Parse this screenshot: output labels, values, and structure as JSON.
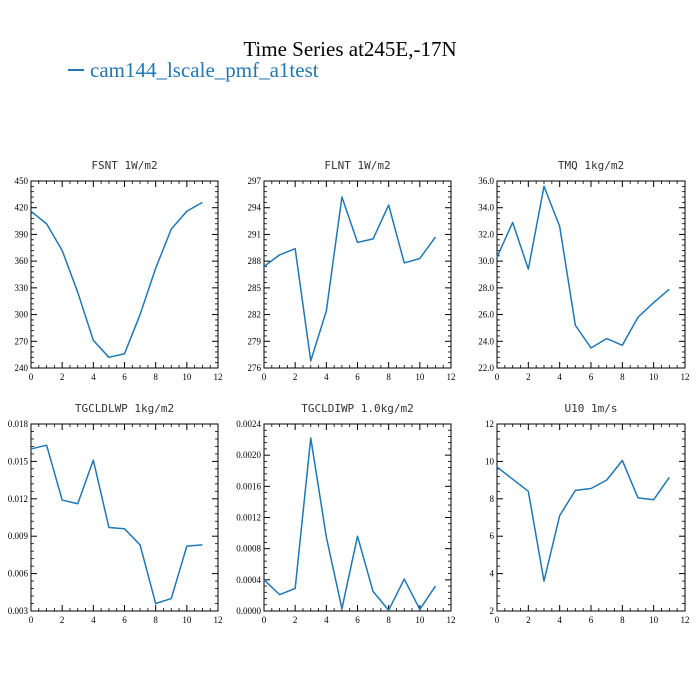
{
  "title": "Time Series at245E,-17N",
  "legend": {
    "label": "cam144_lscale_pmf_a1test",
    "color": "#1f77b4"
  },
  "chart_data": [
    {
      "type": "line",
      "title": "FSNT  1W/m2",
      "x": [
        0,
        1,
        2,
        3,
        4,
        5,
        6,
        7,
        8,
        9,
        10,
        11
      ],
      "series": [
        {
          "values": [
            416,
            402,
            372,
            325,
            271,
            252,
            256,
            300,
            352,
            396,
            416,
            426
          ]
        }
      ],
      "xlim": [
        0,
        12
      ],
      "ylim": [
        240,
        450
      ],
      "xticks": [
        0,
        2,
        4,
        6,
        8,
        10,
        12
      ],
      "yticks": [
        240,
        270,
        300,
        330,
        360,
        390,
        420,
        450
      ],
      "ytick_labels": [
        "240",
        "270",
        "300",
        "330",
        "360",
        "390",
        "420",
        "450"
      ]
    },
    {
      "type": "line",
      "title": "FLNT  1W/m2",
      "x": [
        0,
        1,
        2,
        3,
        4,
        5,
        6,
        7,
        8,
        9,
        10,
        11
      ],
      "series": [
        {
          "values": [
            287.4,
            288.7,
            289.4,
            276.8,
            282.4,
            295.2,
            290.1,
            290.5,
            294.3,
            287.8,
            288.3,
            290.7
          ]
        }
      ],
      "xlim": [
        0,
        12
      ],
      "ylim": [
        276,
        297
      ],
      "xticks": [
        0,
        2,
        4,
        6,
        8,
        10,
        12
      ],
      "yticks": [
        276,
        279,
        282,
        285,
        288,
        291,
        294,
        297
      ],
      "ytick_labels": [
        "276",
        "279",
        "282",
        "285",
        "288",
        "291",
        "294",
        "297"
      ]
    },
    {
      "type": "line",
      "title": "TMQ  1kg/m2",
      "x": [
        0,
        1,
        2,
        3,
        4,
        5,
        6,
        7,
        8,
        9,
        10,
        11
      ],
      "series": [
        {
          "values": [
            30.3,
            32.9,
            29.4,
            35.6,
            32.6,
            25.2,
            23.5,
            24.2,
            23.7,
            25.8,
            26.9,
            27.9
          ]
        }
      ],
      "xlim": [
        0,
        12
      ],
      "ylim": [
        22,
        36
      ],
      "xticks": [
        0,
        2,
        4,
        6,
        8,
        10,
        12
      ],
      "yticks": [
        22,
        24,
        26,
        28,
        30,
        32,
        34,
        36
      ],
      "ytick_labels": [
        "22.0",
        "24.0",
        "26.0",
        "28.0",
        "30.0",
        "32.0",
        "34.0",
        "36.0"
      ]
    },
    {
      "type": "line",
      "title": "TGCLDLWP  1kg/m2",
      "x": [
        0,
        1,
        2,
        3,
        4,
        5,
        6,
        7,
        8,
        9,
        10,
        11
      ],
      "series": [
        {
          "values": [
            0.016,
            0.0163,
            0.0119,
            0.0116,
            0.0151,
            0.0097,
            0.0096,
            0.0083,
            0.0036,
            0.004,
            0.0082,
            0.0083
          ]
        }
      ],
      "xlim": [
        0,
        12
      ],
      "ylim": [
        0.003,
        0.018
      ],
      "xticks": [
        0,
        2,
        4,
        6,
        8,
        10,
        12
      ],
      "yticks": [
        0.003,
        0.006,
        0.009,
        0.012,
        0.015,
        0.018
      ],
      "ytick_labels": [
        "0.003",
        "0.006",
        "0.009",
        "0.012",
        "0.015",
        "0.018"
      ]
    },
    {
      "type": "line",
      "title": "TGCLDIWP  1.0kg/m2",
      "x": [
        0,
        1,
        2,
        3,
        4,
        5,
        6,
        7,
        8,
        9,
        10,
        11
      ],
      "series": [
        {
          "values": [
            0.0004,
            0.00021,
            0.00029,
            0.00222,
            0.00095,
            3e-05,
            0.00096,
            0.00025,
            1e-05,
            0.00041,
            2e-05,
            0.00032
          ]
        }
      ],
      "xlim": [
        0,
        12
      ],
      "ylim": [
        0,
        0.0024
      ],
      "xticks": [
        0,
        2,
        4,
        6,
        8,
        10,
        12
      ],
      "yticks": [
        0,
        0.0004,
        0.0008,
        0.0012,
        0.0016,
        0.002,
        0.0024
      ],
      "ytick_labels": [
        "0.0000",
        "0.0004",
        "0.0008",
        "0.0012",
        "0.0016",
        "0.0020",
        "0.0024"
      ]
    },
    {
      "type": "line",
      "title": "U10  1m/s",
      "x": [
        0,
        1,
        2,
        3,
        4,
        5,
        6,
        7,
        8,
        9,
        10,
        11
      ],
      "series": [
        {
          "values": [
            9.7,
            9.05,
            8.4,
            3.6,
            7.1,
            8.45,
            8.55,
            9.0,
            10.05,
            8.05,
            7.95,
            9.15
          ]
        }
      ],
      "xlim": [
        0,
        12
      ],
      "ylim": [
        2,
        12
      ],
      "xticks": [
        0,
        2,
        4,
        6,
        8,
        10,
        12
      ],
      "yticks": [
        2,
        4,
        6,
        8,
        10,
        12
      ],
      "ytick_labels": [
        "2",
        "4",
        "6",
        "8",
        "10",
        "12"
      ]
    }
  ]
}
